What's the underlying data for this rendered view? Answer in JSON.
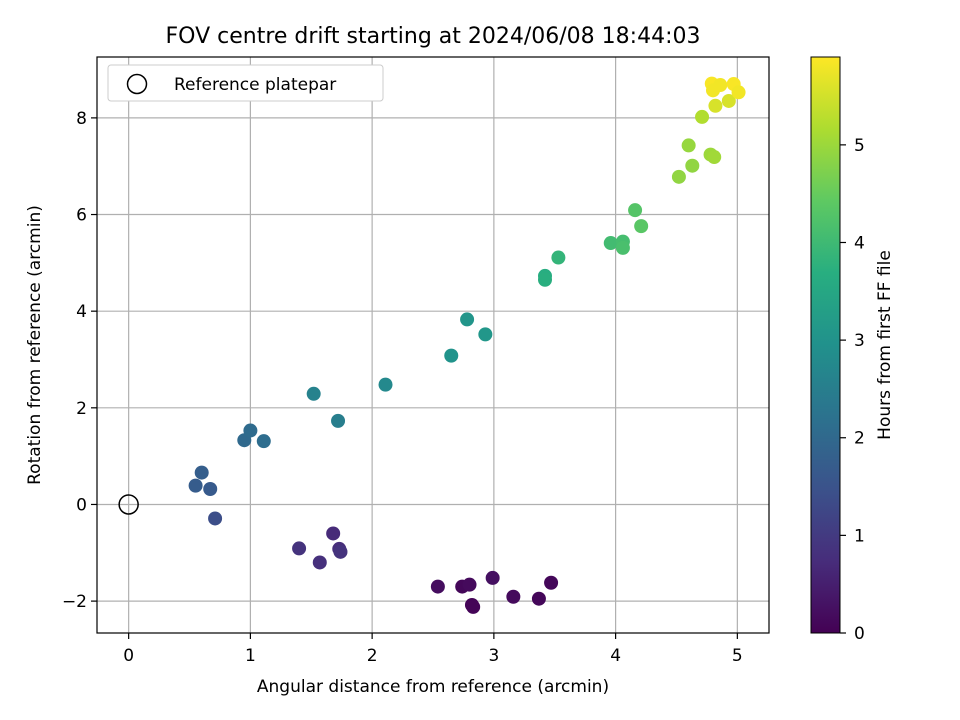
{
  "chart_data": {
    "type": "scatter",
    "title": "FOV centre drift starting at 2024/06/08 18:44:03",
    "xlabel": "Angular distance from reference (arcmin)",
    "ylabel": "Rotation from reference (arcmin)",
    "xlim": [
      -0.26,
      5.26
    ],
    "ylim": [
      -2.66,
      9.26
    ],
    "xticks": [
      0,
      1,
      2,
      3,
      4,
      5
    ],
    "yticks": [
      -2,
      0,
      2,
      4,
      6,
      8
    ],
    "xtick_labels": [
      "0",
      "1",
      "2",
      "3",
      "4",
      "5"
    ],
    "ytick_labels": [
      "−2",
      "0",
      "2",
      "4",
      "6",
      "8"
    ],
    "grid": true,
    "legend": {
      "position": "upper-left",
      "entries": [
        "Reference platepar"
      ]
    },
    "reference_point": {
      "x": 0,
      "y": 0
    },
    "colormap": "viridis",
    "colorbar": {
      "label": "Hours from first FF file",
      "range": [
        0,
        5.9
      ],
      "ticks": [
        0,
        1,
        2,
        3,
        4,
        5
      ],
      "tick_labels": [
        "0",
        "1",
        "2",
        "3",
        "4",
        "5"
      ]
    },
    "points": [
      {
        "x": 2.54,
        "y": -1.7,
        "c": 0.2
      },
      {
        "x": 2.74,
        "y": -1.7,
        "c": 0.1
      },
      {
        "x": 2.8,
        "y": -1.66,
        "c": 0.15
      },
      {
        "x": 2.82,
        "y": -2.08,
        "c": 0.05
      },
      {
        "x": 2.83,
        "y": -2.12,
        "c": 0.05
      },
      {
        "x": 2.99,
        "y": -1.52,
        "c": 0.25
      },
      {
        "x": 3.16,
        "y": -1.91,
        "c": 0.15
      },
      {
        "x": 3.37,
        "y": -1.95,
        "c": 0.1
      },
      {
        "x": 3.47,
        "y": -1.62,
        "c": 0.1
      },
      {
        "x": 1.4,
        "y": -0.91,
        "c": 0.85
      },
      {
        "x": 1.57,
        "y": -1.2,
        "c": 0.8
      },
      {
        "x": 1.68,
        "y": -0.6,
        "c": 0.7
      },
      {
        "x": 1.73,
        "y": -0.92,
        "c": 0.75
      },
      {
        "x": 1.74,
        "y": -0.98,
        "c": 0.85
      },
      {
        "x": 0.71,
        "y": -0.29,
        "c": 1.4
      },
      {
        "x": 0.55,
        "y": 0.39,
        "c": 1.7
      },
      {
        "x": 0.6,
        "y": 0.66,
        "c": 1.75
      },
      {
        "x": 0.67,
        "y": 0.32,
        "c": 1.65
      },
      {
        "x": 0.95,
        "y": 1.33,
        "c": 2.0
      },
      {
        "x": 1.0,
        "y": 1.53,
        "c": 2.05
      },
      {
        "x": 1.11,
        "y": 1.31,
        "c": 2.1
      },
      {
        "x": 1.52,
        "y": 2.29,
        "c": 2.6
      },
      {
        "x": 1.72,
        "y": 1.73,
        "c": 2.5
      },
      {
        "x": 2.11,
        "y": 2.48,
        "c": 2.75
      },
      {
        "x": 2.65,
        "y": 3.08,
        "c": 3.0
      },
      {
        "x": 2.78,
        "y": 3.83,
        "c": 3.05
      },
      {
        "x": 2.93,
        "y": 3.52,
        "c": 3.1
      },
      {
        "x": 3.42,
        "y": 4.73,
        "c": 3.65
      },
      {
        "x": 3.42,
        "y": 4.65,
        "c": 3.7
      },
      {
        "x": 3.53,
        "y": 5.11,
        "c": 3.85
      },
      {
        "x": 3.96,
        "y": 5.41,
        "c": 4.05
      },
      {
        "x": 4.06,
        "y": 5.44,
        "c": 4.1
      },
      {
        "x": 4.06,
        "y": 5.31,
        "c": 4.15
      },
      {
        "x": 4.16,
        "y": 6.09,
        "c": 4.3
      },
      {
        "x": 4.21,
        "y": 5.76,
        "c": 4.35
      },
      {
        "x": 4.52,
        "y": 6.78,
        "c": 4.9
      },
      {
        "x": 4.6,
        "y": 7.43,
        "c": 4.95
      },
      {
        "x": 4.63,
        "y": 7.01,
        "c": 4.9
      },
      {
        "x": 4.71,
        "y": 8.02,
        "c": 5.2
      },
      {
        "x": 4.78,
        "y": 7.24,
        "c": 5.0
      },
      {
        "x": 4.81,
        "y": 7.19,
        "c": 5.05
      },
      {
        "x": 4.79,
        "y": 8.71,
        "c": 5.85
      },
      {
        "x": 4.8,
        "y": 8.57,
        "c": 5.8
      },
      {
        "x": 4.82,
        "y": 8.25,
        "c": 5.55
      },
      {
        "x": 4.86,
        "y": 8.68,
        "c": 5.8
      },
      {
        "x": 4.93,
        "y": 8.35,
        "c": 5.55
      },
      {
        "x": 4.97,
        "y": 8.7,
        "c": 5.85
      },
      {
        "x": 5.01,
        "y": 8.53,
        "c": 5.8
      }
    ]
  }
}
